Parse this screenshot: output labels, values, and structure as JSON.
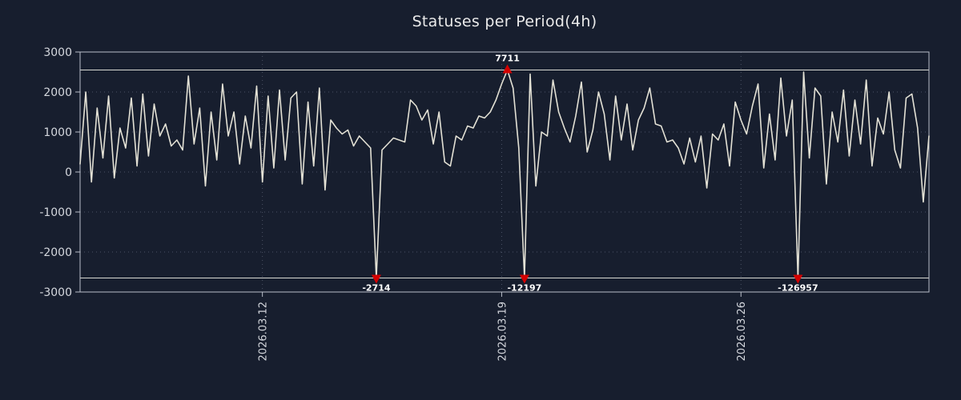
{
  "chart_data": {
    "type": "line",
    "title": "Statuses per Period(4h)",
    "xlabel": "",
    "ylabel": "",
    "ylim": [
      -3000,
      3000
    ],
    "yticks": [
      -3000,
      -2000,
      -1000,
      0,
      1000,
      2000,
      3000
    ],
    "clip_max": 2550,
    "clip_min": -2650,
    "grid": true,
    "legend_position": "none",
    "x_ticks": [
      {
        "index": 32,
        "label": "2026.03.12"
      },
      {
        "index": 74,
        "label": "2026.03.19"
      },
      {
        "index": 116,
        "label": "2026.03.26"
      }
    ],
    "values": [
      200,
      2000,
      -250,
      1600,
      350,
      1900,
      -150,
      1100,
      600,
      1850,
      150,
      1950,
      400,
      1700,
      900,
      1200,
      650,
      800,
      550,
      2400,
      700,
      1600,
      -350,
      1500,
      300,
      2200,
      900,
      1500,
      200,
      1400,
      600,
      2150,
      -250,
      1900,
      100,
      2050,
      300,
      1850,
      2000,
      -300,
      1750,
      150,
      2100,
      -450,
      1300,
      1100,
      950,
      1050,
      650,
      900,
      750,
      600,
      -2714,
      550,
      700,
      850,
      800,
      750,
      1800,
      1650,
      1300,
      1550,
      700,
      1500,
      250,
      150,
      900,
      800,
      1150,
      1100,
      1400,
      1350,
      1500,
      1800,
      2200,
      7711,
      2100,
      600,
      -12197,
      2450,
      -350,
      1000,
      900,
      2300,
      1500,
      1100,
      750,
      1400,
      2250,
      500,
      1050,
      2000,
      1450,
      300,
      1900,
      800,
      1700,
      550,
      1300,
      1600,
      2100,
      1200,
      1150,
      750,
      800,
      600,
      200,
      850,
      250,
      900,
      -400,
      950,
      800,
      1200,
      150,
      1750,
      1300,
      950,
      1650,
      2200,
      100,
      1450,
      300,
      2350,
      900,
      1800,
      -126957,
      2500,
      350,
      2100,
      1900,
      -300,
      1500,
      750,
      2050,
      400,
      1800,
      700,
      2300,
      150,
      1350,
      950,
      2000,
      550,
      100,
      1850,
      1950,
      1100,
      -750,
      900
    ],
    "outliers": [
      {
        "index": 52,
        "value": -2714,
        "label": "-2714",
        "direction": "down"
      },
      {
        "index": 75,
        "value": 7711,
        "label": "7711",
        "direction": "up"
      },
      {
        "index": 78,
        "value": -12197,
        "label": "-12197",
        "direction": "down"
      },
      {
        "index": 126,
        "value": -126957,
        "label": "-126957",
        "direction": "down"
      }
    ],
    "colors": {
      "background": "#171e2e",
      "line": "#e3e1d5",
      "marker": "#d40000",
      "marker_label": "#ffffff",
      "frame": "#b9bec9",
      "grid": "#8a94a8",
      "tick_text": "#d4d7dd",
      "limit_line": "#d8d8d2"
    }
  }
}
